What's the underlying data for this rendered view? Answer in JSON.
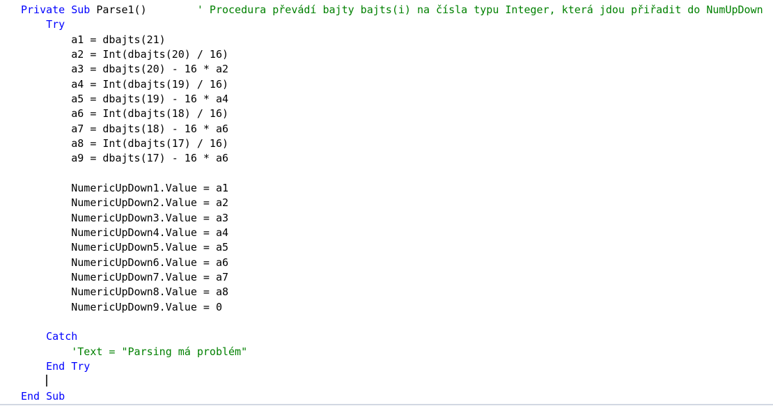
{
  "editor": {
    "language": "vb",
    "colors": {
      "keyword": "#0000ff",
      "comment": "#008000",
      "plain": "#000000",
      "bottom_border": "#d2d8e2",
      "background": "#ffffff"
    },
    "cursor": {
      "line": 26,
      "column": 4
    },
    "lines": [
      {
        "tokens": [
          {
            "type": "keyword",
            "text": "Private Sub "
          },
          {
            "type": "plain",
            "text": "Parse1()"
          },
          {
            "type": "plain",
            "text": "        "
          },
          {
            "type": "comment",
            "text": "' Procedura převádí bajty bajts(i) na čísla typu Integer, která jdou přiřadit do NumUpDown"
          }
        ]
      },
      {
        "tokens": [
          {
            "type": "plain",
            "text": "    "
          },
          {
            "type": "keyword",
            "text": "Try"
          }
        ]
      },
      {
        "tokens": [
          {
            "type": "plain",
            "text": "        a1 = dbajts(21)"
          }
        ]
      },
      {
        "tokens": [
          {
            "type": "plain",
            "text": "        a2 = Int(dbajts(20) / 16)"
          }
        ]
      },
      {
        "tokens": [
          {
            "type": "plain",
            "text": "        a3 = dbajts(20) - 16 * a2"
          }
        ]
      },
      {
        "tokens": [
          {
            "type": "plain",
            "text": "        a4 = Int(dbajts(19) / 16)"
          }
        ]
      },
      {
        "tokens": [
          {
            "type": "plain",
            "text": "        a5 = dbajts(19) - 16 * a4"
          }
        ]
      },
      {
        "tokens": [
          {
            "type": "plain",
            "text": "        a6 = Int(dbajts(18) / 16)"
          }
        ]
      },
      {
        "tokens": [
          {
            "type": "plain",
            "text": "        a7 = dbajts(18) - 16 * a6"
          }
        ]
      },
      {
        "tokens": [
          {
            "type": "plain",
            "text": "        a8 = Int(dbajts(17) / 16)"
          }
        ]
      },
      {
        "tokens": [
          {
            "type": "plain",
            "text": "        a9 = dbajts(17) - 16 * a6"
          }
        ]
      },
      {
        "tokens": []
      },
      {
        "tokens": [
          {
            "type": "plain",
            "text": "        NumericUpDown1.Value = a1"
          }
        ]
      },
      {
        "tokens": [
          {
            "type": "plain",
            "text": "        NumericUpDown2.Value = a2"
          }
        ]
      },
      {
        "tokens": [
          {
            "type": "plain",
            "text": "        NumericUpDown3.Value = a3"
          }
        ]
      },
      {
        "tokens": [
          {
            "type": "plain",
            "text": "        NumericUpDown4.Value = a4"
          }
        ]
      },
      {
        "tokens": [
          {
            "type": "plain",
            "text": "        NumericUpDown5.Value = a5"
          }
        ]
      },
      {
        "tokens": [
          {
            "type": "plain",
            "text": "        NumericUpDown6.Value = a6"
          }
        ]
      },
      {
        "tokens": [
          {
            "type": "plain",
            "text": "        NumericUpDown7.Value = a7"
          }
        ]
      },
      {
        "tokens": [
          {
            "type": "plain",
            "text": "        NumericUpDown8.Value = a8"
          }
        ]
      },
      {
        "tokens": [
          {
            "type": "plain",
            "text": "        NumericUpDown9.Value = 0"
          }
        ]
      },
      {
        "tokens": []
      },
      {
        "tokens": [
          {
            "type": "plain",
            "text": "    "
          },
          {
            "type": "keyword",
            "text": "Catch"
          }
        ]
      },
      {
        "tokens": [
          {
            "type": "plain",
            "text": "        "
          },
          {
            "type": "comment",
            "text": "'Text = \"Parsing má problém\""
          }
        ]
      },
      {
        "tokens": [
          {
            "type": "plain",
            "text": "    "
          },
          {
            "type": "keyword",
            "text": "End Try"
          }
        ]
      },
      {
        "tokens": [
          {
            "type": "plain",
            "text": "    "
          }
        ]
      },
      {
        "tokens": [
          {
            "type": "keyword",
            "text": "End Sub"
          }
        ]
      }
    ]
  }
}
